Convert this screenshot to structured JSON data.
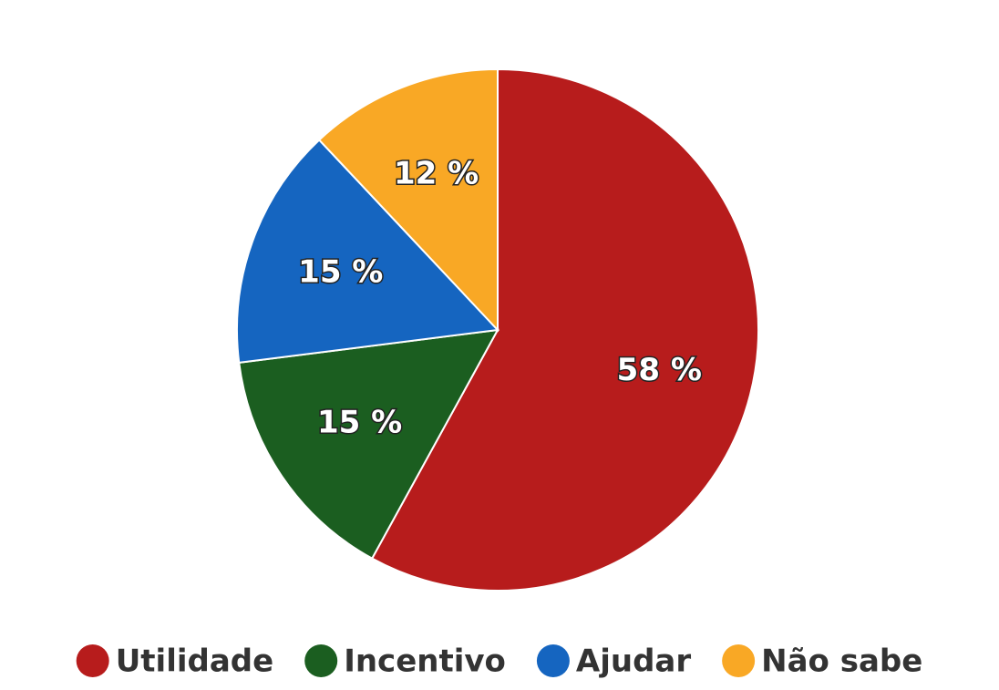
{
  "chart_data": {
    "type": "pie",
    "categories": [
      "Utilidade",
      "Incentivo",
      "Ajudar",
      "Não sabe"
    ],
    "values": [
      58,
      15,
      15,
      12
    ],
    "value_labels": [
      "58 %",
      "15 %",
      "15 %",
      "12 %"
    ],
    "colors": [
      "#b71c1c",
      "#1b5e20",
      "#1565c0",
      "#f9a825"
    ],
    "legend": "bottom"
  }
}
